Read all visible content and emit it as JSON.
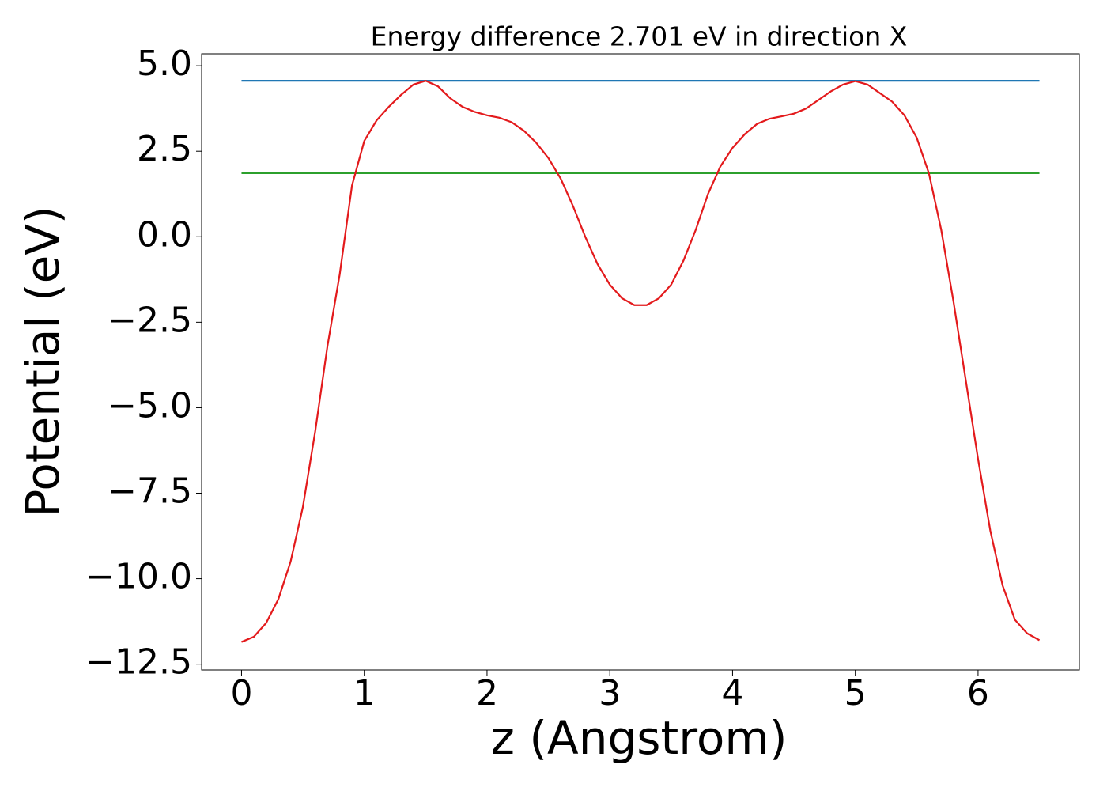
{
  "chart_data": {
    "type": "line",
    "title": "Energy difference 2.701 eV in direction X",
    "xlabel": "z (Angstrom)",
    "ylabel": "Potential (eV)",
    "xlim": [
      -0.325,
      6.825
    ],
    "ylim": [
      -12.67,
      5.35
    ],
    "xticks": [
      0,
      1,
      2,
      3,
      4,
      5,
      6
    ],
    "yticks": [
      {
        "value": 5.0,
        "label": "5.0"
      },
      {
        "value": 2.5,
        "label": "2.5"
      },
      {
        "value": 0.0,
        "label": "0.0"
      },
      {
        "value": -2.5,
        "label": "−2.5"
      },
      {
        "value": -5.0,
        "label": "−5.0"
      },
      {
        "value": -7.5,
        "label": "−7.5"
      },
      {
        "value": -10.0,
        "label": "−10.0"
      },
      {
        "value": -12.5,
        "label": "−12.5"
      }
    ],
    "series": [
      {
        "color": "#1f77b4",
        "x": [
          0,
          6.5
        ],
        "values": [
          4.56,
          4.56
        ]
      },
      {
        "color": "#2ca02c",
        "x": [
          0,
          6.5
        ],
        "values": [
          1.86,
          1.86
        ]
      },
      {
        "color": "#e31a1c",
        "x": [
          0,
          0.1,
          0.2,
          0.3,
          0.4,
          0.5,
          0.6,
          0.7,
          0.8,
          0.9,
          1.0,
          1.1,
          1.2,
          1.3,
          1.4,
          1.5,
          1.6,
          1.7,
          1.8,
          1.9,
          2.0,
          2.1,
          2.2,
          2.3,
          2.4,
          2.5,
          2.6,
          2.7,
          2.8,
          2.9,
          3.0,
          3.1,
          3.2,
          3.3,
          3.4,
          3.5,
          3.6,
          3.7,
          3.8,
          3.9,
          4.0,
          4.1,
          4.2,
          4.3,
          4.4,
          4.5,
          4.6,
          4.7,
          4.8,
          4.9,
          5.0,
          5.1,
          5.2,
          5.3,
          5.4,
          5.5,
          5.6,
          5.7,
          5.8,
          5.9,
          6.0,
          6.1,
          6.2,
          6.3,
          6.4,
          6.5
        ],
        "values": [
          -11.85,
          -11.7,
          -11.3,
          -10.6,
          -9.5,
          -7.9,
          -5.7,
          -3.2,
          -1.1,
          1.5,
          2.8,
          3.4,
          3.8,
          4.15,
          4.45,
          4.56,
          4.4,
          4.05,
          3.8,
          3.65,
          3.55,
          3.48,
          3.35,
          3.1,
          2.75,
          2.3,
          1.7,
          0.9,
          0.0,
          -0.8,
          -1.4,
          -1.8,
          -2.0,
          -2.0,
          -1.8,
          -1.4,
          -0.7,
          0.2,
          1.25,
          2.05,
          2.6,
          3.0,
          3.3,
          3.45,
          3.52,
          3.6,
          3.75,
          4.0,
          4.25,
          4.45,
          4.55,
          4.45,
          4.2,
          3.95,
          3.55,
          2.9,
          1.85,
          0.2,
          -1.9,
          -4.2,
          -6.5,
          -8.6,
          -10.2,
          -11.2,
          -11.6,
          -11.8
        ]
      }
    ]
  }
}
